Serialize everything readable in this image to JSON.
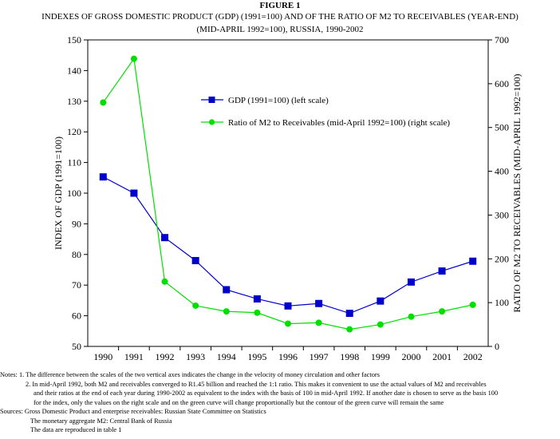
{
  "figure_label": "FIGURE 1",
  "title_line1": "INDEXES OF GROSS DOMESTIC PRODUCT (GDP) (1991=100) AND OF THE RATIO OF M2 TO RECEIVABLES (YEAR-END)",
  "title_line2": "(MID-APRIL 1992=100), RUSSIA, 1990-2002",
  "notes": {
    "n1": "Notes:  1.  The difference between the scales of the two vertical axes indicates the change in the velocity of money circulation and other factors",
    "n2a": "2.  In mid-April 1992,  both M2 and receivables converged to R1.45 billion and reached the 1:1 ratio.  This makes it convenient to use the actual values of M2 and receivables",
    "n2b": "and their ratios at the end of each year during 1990-2002 as equivalent to the index with the basis of 100 in mid-April 1992.  If another date is chosen to serve as the basis 100",
    "n2c": "for the index, only the values on the right scale and on the green curve will change proportionally but the contour of the green curve will remain the same",
    "s1": "Sources: Gross Domestic Product and enterprise receivables: Russian State Committee on Statistics",
    "s2": "The monetary aggregate M2: Central Bank of Russia",
    "s3": "The data are reproduced in table 1"
  },
  "chart_data": {
    "type": "line",
    "categories": [
      "1990",
      "1991",
      "1992",
      "1993",
      "1994",
      "1995",
      "1996",
      "1997",
      "1998",
      "1999",
      "2000",
      "2001",
      "2002"
    ],
    "left_axis": {
      "label": "INDEX OF GDP (1991=100)",
      "range": [
        50,
        150
      ],
      "ticks": [
        50,
        60,
        70,
        80,
        90,
        100,
        110,
        120,
        130,
        140,
        150
      ]
    },
    "right_axis": {
      "label": "RATIO OF M2 TO RECEIVABLES (MID-APRIL 1992=100)",
      "range": [
        0,
        700
      ],
      "ticks": [
        0,
        100,
        200,
        300,
        400,
        500,
        600,
        700
      ]
    },
    "series": [
      {
        "name": "GDP (1991=100) (left scale)",
        "axis": "left",
        "color": "#0000cc",
        "marker": "square",
        "values": [
          105.3,
          100,
          85.5,
          78,
          68.5,
          65.5,
          63.2,
          64,
          60.8,
          64.8,
          71,
          74.6,
          77.8
        ]
      },
      {
        "name": "Ratio of M2 to Receivables (mid-April 1992=100) (right scale)",
        "axis": "right",
        "color": "#00e000",
        "marker": "circle",
        "values": [
          557,
          657,
          148,
          93,
          80,
          77,
          52,
          54,
          39,
          50,
          68,
          80,
          95
        ]
      }
    ],
    "legend_position": "upper-middle",
    "grid": false
  }
}
